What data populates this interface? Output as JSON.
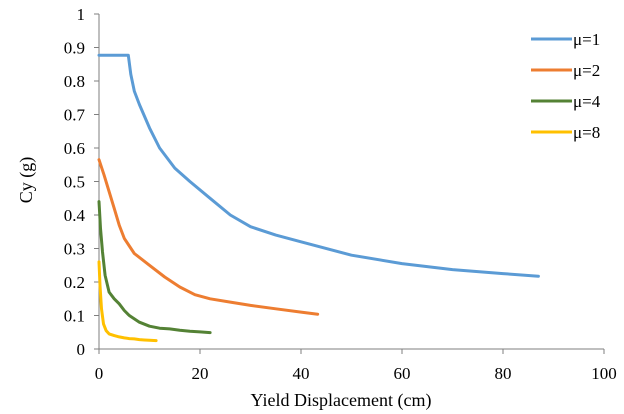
{
  "chart_data": {
    "type": "line",
    "title": "",
    "xlabel": "Yield Displacement (cm)",
    "ylabel": "Cy (g)",
    "xlim": [
      0,
      100
    ],
    "ylim": [
      0,
      1
    ],
    "xticks": [
      0,
      20,
      40,
      60,
      80,
      100
    ],
    "yticks": [
      0,
      0.1,
      0.2,
      0.3,
      0.4,
      0.5,
      0.6,
      0.7,
      0.8,
      0.9,
      1
    ],
    "grid": false,
    "legend_position": "top-right",
    "series": [
      {
        "name": "μ=1",
        "color": "#5B9BD5",
        "x": [
          0,
          2,
          4,
          5.8,
          6.3,
          7,
          8,
          10,
          12,
          15,
          18,
          22,
          26,
          30,
          35,
          40,
          50,
          60,
          70,
          80,
          87
        ],
        "y": [
          0.877,
          0.877,
          0.877,
          0.877,
          0.82,
          0.77,
          0.73,
          0.66,
          0.6,
          0.54,
          0.5,
          0.45,
          0.4,
          0.365,
          0.34,
          0.32,
          0.28,
          0.255,
          0.237,
          0.225,
          0.217
        ]
      },
      {
        "name": "μ=2",
        "color": "#ED7D31",
        "x": [
          0,
          1,
          2,
          3,
          4,
          5,
          7,
          10,
          13,
          16,
          19,
          22,
          26,
          30,
          35,
          40,
          43.3
        ],
        "y": [
          0.565,
          0.52,
          0.47,
          0.42,
          0.37,
          0.33,
          0.285,
          0.25,
          0.215,
          0.185,
          0.162,
          0.15,
          0.14,
          0.13,
          0.12,
          0.11,
          0.104
        ]
      },
      {
        "name": "μ=4",
        "color": "#548235",
        "x": [
          0,
          0.3,
          0.7,
          1.2,
          2,
          3,
          4,
          5,
          6,
          8,
          10,
          12,
          14,
          16,
          18,
          20,
          22
        ],
        "y": [
          0.44,
          0.36,
          0.29,
          0.22,
          0.17,
          0.15,
          0.135,
          0.115,
          0.1,
          0.08,
          0.068,
          0.062,
          0.06,
          0.056,
          0.053,
          0.051,
          0.049
        ]
      },
      {
        "name": "μ=8",
        "color": "#FFC000",
        "x": [
          0,
          0.2,
          0.5,
          0.9,
          1.4,
          2,
          3,
          4,
          5,
          6,
          7,
          8,
          9,
          10,
          11.3
        ],
        "y": [
          0.26,
          0.19,
          0.12,
          0.075,
          0.055,
          0.045,
          0.04,
          0.036,
          0.033,
          0.031,
          0.03,
          0.028,
          0.027,
          0.026,
          0.025
        ]
      }
    ]
  }
}
